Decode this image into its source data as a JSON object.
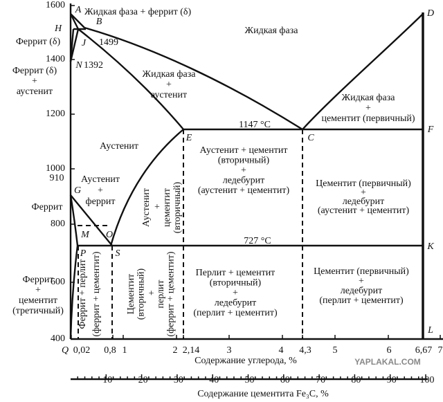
{
  "y_axis": {
    "ticks": [
      "1600",
      "1400",
      "1200",
      "1000",
      "800",
      "600",
      "400"
    ],
    "extra_tick": "910"
  },
  "x_axis": {
    "ticks": [
      "0,02",
      "0,8",
      "1",
      "2",
      "2,14",
      "3",
      "4",
      "4,3",
      "5",
      "6",
      "6,67",
      "7"
    ],
    "title": "Содержание углерода, %"
  },
  "x2_axis": {
    "ticks": [
      "10",
      "20",
      "30",
      "40",
      "50",
      "60",
      "70",
      "80",
      "90",
      "100"
    ],
    "title": "Содержание цементита Fe₃C, %"
  },
  "points": [
    "A",
    "B",
    "H",
    "J",
    "N",
    "D",
    "E",
    "C",
    "F",
    "G",
    "M",
    "O",
    "P",
    "S",
    "K",
    "Q",
    "L"
  ],
  "temperatures": [
    "1499",
    "1392",
    "1147 °C",
    "727 °C"
  ],
  "regions": [
    {
      "lines": [
        "Жидкая фаза + феррит (δ)"
      ]
    },
    {
      "lines": [
        "Жидкая фаза"
      ]
    },
    {
      "lines": [
        "Феррит (δ)"
      ]
    },
    {
      "lines": [
        "Феррит (δ)",
        "+",
        "аустенит"
      ]
    },
    {
      "lines": [
        "Жидкая фаза",
        "+",
        "аустенит"
      ]
    },
    {
      "lines": [
        "Жидкая фаза",
        "+",
        "цементит (первичный)"
      ]
    },
    {
      "lines": [
        "Аустенит"
      ]
    },
    {
      "lines": [
        "Аустенит + цементит",
        "(вторичный)",
        "+",
        "ледебурит",
        "(аустенит + цементит)"
      ]
    },
    {
      "lines": [
        "Аустенит",
        "+",
        "феррит"
      ]
    },
    {
      "lines": [
        "Цементит (первичный)",
        "+",
        "ледебурит",
        "(аустенит + цементит)"
      ]
    },
    {
      "lines": [
        "Феррит"
      ]
    },
    {
      "lines": [
        "Аустенит",
        "+",
        "цементит",
        "(вторичный)"
      ]
    },
    {
      "lines": [
        "Феррит + перлит",
        "(феррит + цементит)"
      ]
    },
    {
      "lines": [
        "Цементит",
        "(вторичный)",
        "+",
        "перлит",
        "(феррит + цементит)"
      ]
    },
    {
      "lines": [
        "Перлит + цементит",
        "(вторичный)",
        "+",
        "ледебурит",
        "(перлит + цементит)"
      ]
    },
    {
      "lines": [
        "Цементит (первичный)",
        "+",
        "ледебурит",
        "(перлит + цементит)"
      ]
    },
    {
      "lines": [
        "Феррит",
        "+",
        "цементит",
        "(третичный)"
      ]
    }
  ],
  "watermark": "YAPLAKAL.COM"
}
